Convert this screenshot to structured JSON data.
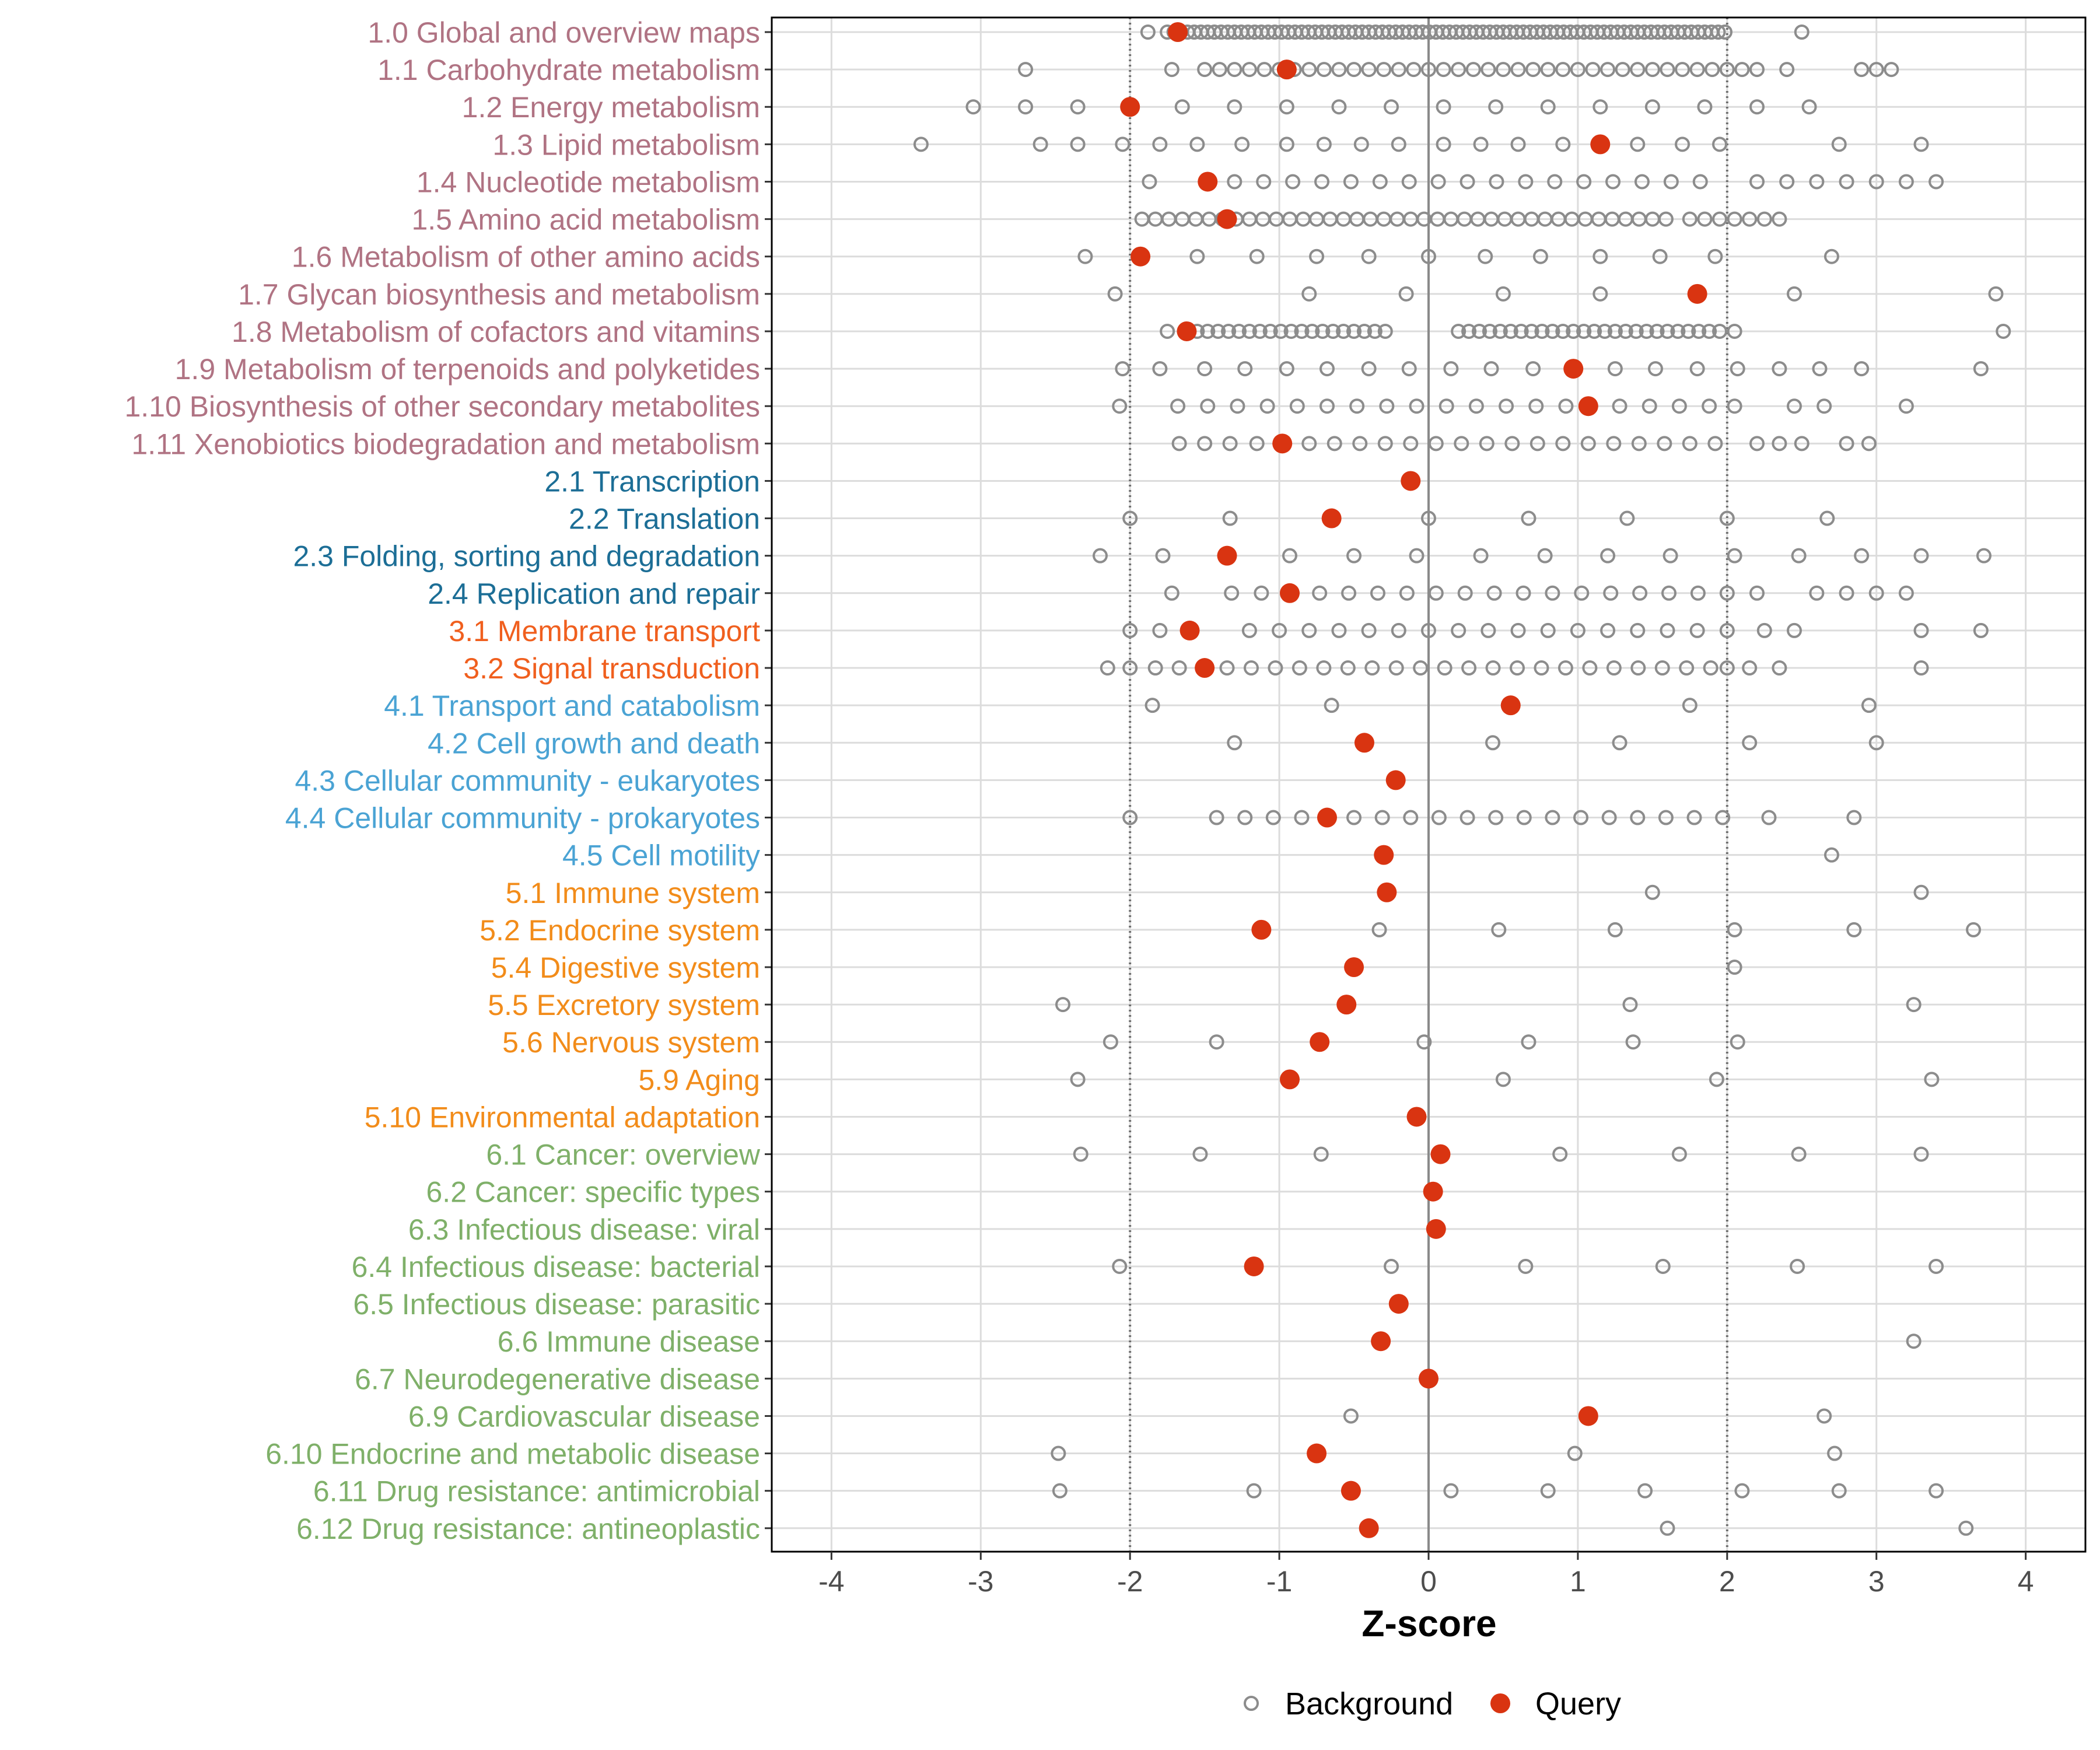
{
  "chart_data": {
    "type": "scatter",
    "title": "",
    "xlabel": "Z-score",
    "ylabel": "",
    "xlim": [
      -4.4,
      4.4
    ],
    "x_ticks": [
      -4,
      -3,
      -2,
      -1,
      0,
      1,
      2,
      3,
      4
    ],
    "reference_lines": [
      -2,
      2
    ],
    "legend": {
      "position": "bottom",
      "entries": [
        {
          "name": "Background",
          "marker": "open-circle",
          "color": "#8c8c8c"
        },
        {
          "name": "Query",
          "marker": "filled-circle",
          "color": "#d93411"
        }
      ]
    },
    "groups": {
      "1": {
        "color": "#b07383"
      },
      "2": {
        "color": "#1c6e96"
      },
      "3": {
        "color": "#f05f1e"
      },
      "4": {
        "color": "#4aa3d4"
      },
      "5": {
        "color": "#f28c1a"
      },
      "6": {
        "color": "#7fb069"
      }
    },
    "categories": [
      {
        "label": "1.0 Global and overview maps",
        "group": "1",
        "query": -1.68,
        "background": {
          "dense": [
            -1.75,
            2.0,
            0.045
          ],
          "extra": [
            -1.88,
            2.5
          ]
        }
      },
      {
        "label": "1.1 Carbohydrate metabolism",
        "group": "1",
        "query": -0.95,
        "background": {
          "dense": [
            -1.5,
            1.9,
            0.1
          ],
          "extra": [
            -2.7,
            -1.72,
            2.0,
            2.1,
            2.2,
            2.4,
            2.9,
            3.0,
            3.1
          ]
        }
      },
      {
        "label": "1.2 Energy metabolism",
        "group": "1",
        "query": -2.0,
        "background": [
          -3.05,
          -2.7,
          -2.35,
          -1.65,
          -1.3,
          -0.95,
          -0.6,
          -0.25,
          0.1,
          0.45,
          0.8,
          1.15,
          1.5,
          1.85,
          2.2,
          2.55
        ]
      },
      {
        "label": "1.3 Lipid metabolism",
        "group": "1",
        "query": 1.15,
        "background": [
          -3.4,
          -2.6,
          -2.35,
          -2.05,
          -1.8,
          -1.55,
          -1.25,
          -0.95,
          -0.7,
          -0.45,
          -0.2,
          0.1,
          0.35,
          0.6,
          0.9,
          1.4,
          1.7,
          1.95,
          2.75,
          3.3
        ]
      },
      {
        "label": "1.4 Nucleotide metabolism",
        "group": "1",
        "query": -1.48,
        "background": {
          "dense": [
            -1.3,
            2.0,
            0.195
          ],
          "extra": [
            -1.87,
            2.2,
            2.4,
            2.6,
            2.8,
            3.0,
            3.2,
            3.4
          ]
        }
      },
      {
        "label": "1.5 Amino acid metabolism",
        "group": "1",
        "query": -1.35,
        "background": {
          "dense": [
            -1.92,
            1.65,
            0.09
          ],
          "extra": [
            1.75,
            1.85,
            1.95,
            2.05,
            2.15,
            2.25,
            2.35
          ]
        }
      },
      {
        "label": "1.6 Metabolism of other amino acids",
        "group": "1",
        "query": -1.93,
        "background": [
          -2.3,
          -1.55,
          -1.15,
          -0.75,
          -0.4,
          0.0,
          0.38,
          0.75,
          1.15,
          1.55,
          1.92,
          2.7
        ]
      },
      {
        "label": "1.7 Glycan biosynthesis and metabolism",
        "group": "1",
        "query": 1.8,
        "background": [
          -2.1,
          -0.8,
          -0.15,
          0.5,
          1.15,
          2.45,
          3.8
        ]
      },
      {
        "label": "1.8 Metabolism of cofactors and vitamins",
        "group": "1",
        "query": -1.62,
        "background": {
          "dense": [
            -1.55,
            -0.25,
            0.07
          ],
          "dense2": [
            0.2,
            1.95,
            0.07
          ],
          "extra": [
            -1.75,
            2.05,
            3.85
          ]
        }
      },
      {
        "label": "1.9 Metabolism of terpenoids and polyketides",
        "group": "1",
        "query": 0.97,
        "background": [
          -2.05,
          -1.8,
          -1.5,
          -1.23,
          -0.95,
          -0.68,
          -0.4,
          -0.13,
          0.15,
          0.42,
          0.7,
          1.25,
          1.52,
          1.8,
          2.07,
          2.35,
          2.62,
          2.9,
          3.7
        ]
      },
      {
        "label": "1.10 Biosynthesis of other secondary metabolites",
        "group": "1",
        "query": 1.07,
        "background": [
          -2.07,
          -1.68,
          -1.48,
          -1.28,
          -1.08,
          -0.88,
          -0.68,
          -0.48,
          -0.28,
          -0.08,
          0.12,
          0.32,
          0.52,
          0.72,
          0.92,
          1.28,
          1.48,
          1.68,
          1.88,
          2.05,
          2.45,
          2.65,
          3.2
        ]
      },
      {
        "label": "1.11 Xenobiotics biodegradation and metabolism",
        "group": "1",
        "query": -0.98,
        "background": {
          "dense": [
            -0.8,
            2.05,
            0.17
          ],
          "extra": [
            -1.67,
            -1.5,
            -1.33,
            -1.15,
            2.2,
            2.35,
            2.5,
            2.8,
            2.95
          ]
        }
      },
      {
        "label": "2.1 Transcription",
        "group": "2",
        "query": -0.12,
        "background": []
      },
      {
        "label": "2.2 Translation",
        "group": "2",
        "query": -0.65,
        "background": [
          -2.0,
          -1.33,
          0.0,
          0.67,
          1.33,
          2.0,
          2.67
        ]
      },
      {
        "label": "2.3 Folding, sorting and degradation",
        "group": "2",
        "query": -1.35,
        "background": [
          -2.2,
          -1.78,
          -0.93,
          -0.5,
          -0.08,
          0.35,
          0.78,
          1.2,
          1.62,
          2.05,
          2.48,
          2.9,
          3.3,
          3.72
        ]
      },
      {
        "label": "2.4 Replication and repair",
        "group": "2",
        "query": -0.93,
        "background": {
          "dense": [
            -0.73,
            2.0,
            0.195
          ],
          "extra": [
            -1.72,
            -1.32,
            -1.12,
            2.2,
            2.6,
            2.8,
            3.0,
            3.2
          ]
        }
      },
      {
        "label": "3.1 Membrane transport",
        "group": "3",
        "query": -1.6,
        "background": {
          "dense": [
            -1.2,
            2.0,
            0.2
          ],
          "extra": [
            -2.0,
            -1.8,
            2.25,
            2.45,
            3.3,
            3.7
          ]
        }
      },
      {
        "label": "3.2 Signal transduction",
        "group": "3",
        "query": -1.5,
        "background": {
          "dense": [
            -1.35,
            1.9,
            0.162
          ],
          "extra": [
            -2.15,
            -2.0,
            -1.83,
            -1.67,
            2.0,
            2.15,
            2.35,
            3.3
          ]
        }
      },
      {
        "label": "4.1 Transport and catabolism",
        "group": "4",
        "query": 0.55,
        "background": [
          -1.85,
          -0.65,
          1.75,
          2.95
        ]
      },
      {
        "label": "4.2 Cell growth and death",
        "group": "4",
        "query": -0.43,
        "background": [
          -1.3,
          0.43,
          1.28,
          2.15,
          3.0
        ]
      },
      {
        "label": "4.3 Cellular community - eukaryotes",
        "group": "4",
        "query": -0.22,
        "background": []
      },
      {
        "label": "4.4 Cellular community - prokaryotes",
        "group": "4",
        "query": -0.68,
        "background": {
          "dense": [
            -0.5,
            2.0,
            0.19
          ],
          "extra": [
            -2.0,
            -1.42,
            -1.23,
            -1.04,
            -0.85,
            2.28,
            2.85
          ]
        }
      },
      {
        "label": "4.5 Cell motility",
        "group": "4",
        "query": -0.3,
        "background": [
          2.7
        ]
      },
      {
        "label": "5.1 Immune system",
        "group": "5",
        "query": -0.28,
        "background": [
          1.5,
          3.3
        ]
      },
      {
        "label": "5.2 Endocrine system",
        "group": "5",
        "query": -1.12,
        "background": [
          -0.33,
          0.47,
          1.25,
          2.05,
          2.85,
          3.65
        ]
      },
      {
        "label": "5.4 Digestive system",
        "group": "5",
        "query": -0.5,
        "background": [
          2.05
        ]
      },
      {
        "label": "5.5 Excretory system",
        "group": "5",
        "query": -0.55,
        "background": [
          -2.45,
          1.35,
          3.25
        ]
      },
      {
        "label": "5.6 Nervous system",
        "group": "5",
        "query": -0.73,
        "background": [
          -2.13,
          -1.42,
          -0.03,
          0.67,
          1.37,
          2.07
        ]
      },
      {
        "label": "5.9 Aging",
        "group": "5",
        "query": -0.93,
        "background": [
          -2.35,
          0.5,
          1.93,
          3.37
        ]
      },
      {
        "label": "5.10 Environmental adaptation",
        "group": "5",
        "query": -0.08,
        "background": []
      },
      {
        "label": "6.1 Cancer: overview",
        "group": "6",
        "query": 0.08,
        "background": [
          -2.33,
          -1.53,
          -0.72,
          0.88,
          1.68,
          2.48,
          3.3
        ]
      },
      {
        "label": "6.2 Cancer: specific types",
        "group": "6",
        "query": 0.03,
        "background": []
      },
      {
        "label": "6.3 Infectious disease: viral",
        "group": "6",
        "query": 0.05,
        "background": []
      },
      {
        "label": "6.4 Infectious disease: bacterial",
        "group": "6",
        "query": -1.17,
        "background": [
          -2.07,
          -0.25,
          0.65,
          1.57,
          2.47,
          3.4
        ]
      },
      {
        "label": "6.5 Infectious disease: parasitic",
        "group": "6",
        "query": -0.2,
        "background": []
      },
      {
        "label": "6.6 Immune disease",
        "group": "6",
        "query": -0.32,
        "background": [
          3.25
        ]
      },
      {
        "label": "6.7 Neurodegenerative disease",
        "group": "6",
        "query": 0.0,
        "background": []
      },
      {
        "label": "6.9 Cardiovascular disease",
        "group": "6",
        "query": 1.07,
        "background": [
          -0.52,
          2.65
        ]
      },
      {
        "label": "6.10 Endocrine and metabolic disease",
        "group": "6",
        "query": -0.75,
        "background": [
          -2.48,
          0.98,
          2.72
        ]
      },
      {
        "label": "6.11 Drug resistance: antimicrobial",
        "group": "6",
        "query": -0.52,
        "background": [
          -2.47,
          -1.17,
          0.15,
          0.8,
          1.45,
          2.1,
          2.75,
          3.4
        ]
      },
      {
        "label": "6.12 Drug resistance: antineoplastic",
        "group": "6",
        "query": -0.4,
        "background": [
          1.6,
          3.6
        ]
      }
    ]
  }
}
